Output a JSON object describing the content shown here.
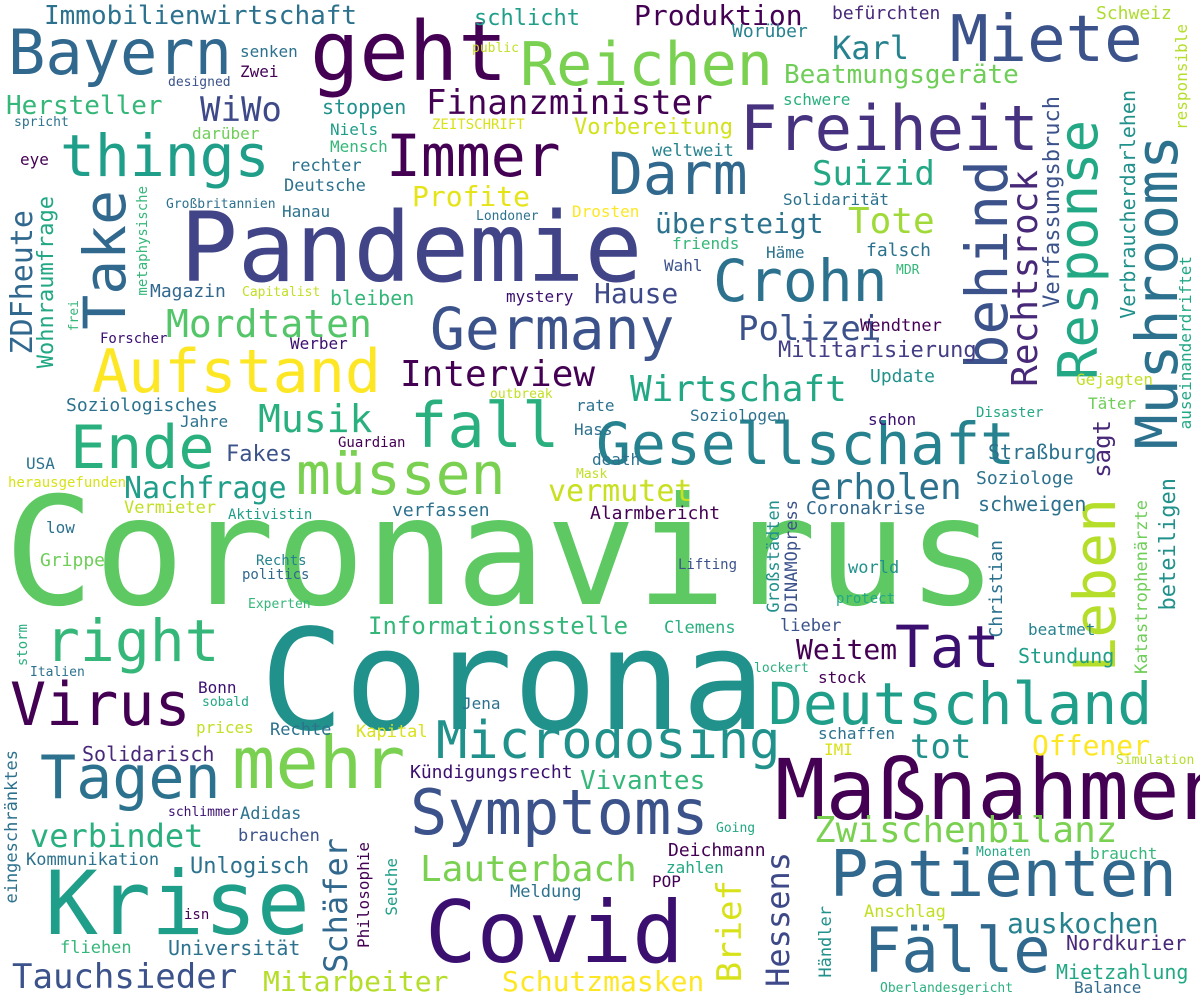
{
  "words": [
    {
      "text": "Coronavirus",
      "color": "#5ec962"
    },
    {
      "text": "Corona",
      "color": "#21918c"
    },
    {
      "text": "Pandemie",
      "color": "#414487"
    },
    {
      "text": "Maßnahmen",
      "color": "#440154"
    },
    {
      "text": "geht",
      "color": "#440154"
    },
    {
      "text": "Covid",
      "color": "#3b0f70"
    },
    {
      "text": "Krise",
      "color": "#1f9e89"
    },
    {
      "text": "mehr",
      "color": "#7ad151"
    },
    {
      "text": "Patienten",
      "color": "#31688e"
    },
    {
      "text": "Reichen",
      "color": "#7ad151"
    },
    {
      "text": "Miete",
      "color": "#3b528b"
    },
    {
      "text": "Bayern",
      "color": "#31688e"
    },
    {
      "text": "Gesellschaft",
      "color": "#26828e"
    },
    {
      "text": "Germany",
      "color": "#3b528b"
    },
    {
      "text": "Deutschland",
      "color": "#1f9e89"
    },
    {
      "text": "Symptoms",
      "color": "#3b528b"
    },
    {
      "text": "Freiheit",
      "color": "#46327e"
    },
    {
      "text": "Aufstand",
      "color": "#fde725"
    },
    {
      "text": "Take",
      "color": "#31688e"
    },
    {
      "text": "Mushrooms",
      "color": "#2c728e"
    },
    {
      "text": "Response",
      "color": "#22a884"
    },
    {
      "text": "behind",
      "color": "#3b528b"
    },
    {
      "text": "Leben",
      "color": "#b5de2b"
    },
    {
      "text": "things",
      "color": "#1f9e89"
    },
    {
      "text": "Immer",
      "color": "#440154"
    },
    {
      "text": "Darm",
      "color": "#31688e"
    },
    {
      "text": "Crohn",
      "color": "#2c728e"
    },
    {
      "text": "fall",
      "color": "#2ab07f"
    },
    {
      "text": "Ende",
      "color": "#2ab07f"
    },
    {
      "text": "müssen",
      "color": "#7ad151"
    },
    {
      "text": "right",
      "color": "#35b779"
    },
    {
      "text": "Virus",
      "color": "#440154"
    },
    {
      "text": "Tagen",
      "color": "#2c728e"
    },
    {
      "text": "Tat",
      "color": "#3b0f70"
    },
    {
      "text": "Microdosing",
      "color": "#21918c"
    },
    {
      "text": "Fälle",
      "color": "#31688e"
    },
    {
      "text": "Rechtsrock",
      "color": "#482878"
    },
    {
      "text": "Finanzminister",
      "color": "#440154"
    },
    {
      "text": "Interview",
      "color": "#440154"
    },
    {
      "text": "Wirtschaft",
      "color": "#22a884"
    },
    {
      "text": "Mordtaten",
      "color": "#54c568"
    },
    {
      "text": "Musik",
      "color": "#2ab07f"
    },
    {
      "text": "Immobilienwirtschaft",
      "color": "#2c728e"
    },
    {
      "text": "Produktion",
      "color": "#440154"
    },
    {
      "text": "Karl",
      "color": "#26828e"
    },
    {
      "text": "WiWo",
      "color": "#3e4989"
    },
    {
      "text": "Hersteller",
      "color": "#35b779"
    },
    {
      "text": "Beatmungsgeräte",
      "color": "#6ece58"
    },
    {
      "text": "Vorbereitung",
      "color": "#d2e21b"
    },
    {
      "text": "Suizid",
      "color": "#22a884"
    },
    {
      "text": "Tote",
      "color": "#a0da39"
    },
    {
      "text": "Profite",
      "color": "#e5e419"
    },
    {
      "text": "übersteigt",
      "color": "#2c728e"
    },
    {
      "text": "Polizei",
      "color": "#3b528b"
    },
    {
      "text": "Hause",
      "color": "#3e4989"
    },
    {
      "text": "vermutet",
      "color": "#c8e020"
    },
    {
      "text": "erholen",
      "color": "#2c728e"
    },
    {
      "text": "Nachfrage",
      "color": "#1f9e89"
    },
    {
      "text": "Zwischenbilanz",
      "color": "#7ad151"
    },
    {
      "text": "Lauterbach",
      "color": "#7ad151"
    },
    {
      "text": "Schäfer",
      "color": "#31688e"
    },
    {
      "text": "verbindet",
      "color": "#2ab07f"
    },
    {
      "text": "Tauchsieder",
      "color": "#3b528b"
    },
    {
      "text": "Mitarbeiter",
      "color": "#b5de2b"
    },
    {
      "text": "Schutzmasken",
      "color": "#fde725"
    },
    {
      "text": "Hessens",
      "color": "#3e4989"
    },
    {
      "text": "Brief",
      "color": "#d8e219"
    },
    {
      "text": "auskochen",
      "color": "#26828e"
    },
    {
      "text": "Offener",
      "color": "#fde725"
    },
    {
      "text": "tot",
      "color": "#21918c"
    },
    {
      "text": "Weitem",
      "color": "#440154"
    },
    {
      "text": "ZDFheute",
      "color": "#31688e"
    },
    {
      "text": "Wohnraumfrage",
      "color": "#22a884"
    },
    {
      "text": "Verfassungsbruch",
      "color": "#3b528b"
    },
    {
      "text": "Verbraucherdarlehen",
      "color": "#21918c"
    },
    {
      "text": "beteiligen",
      "color": "#21918c"
    },
    {
      "text": "sagt",
      "color": "#482878"
    },
    {
      "text": "Informationsstelle",
      "color": "#35b779"
    },
    {
      "text": "Vivantes",
      "color": "#35b779"
    },
    {
      "text": "Militarisierung",
      "color": "#433e85"
    },
    {
      "text": "Soziologisches",
      "color": "#2c728e"
    },
    {
      "text": "stoppen",
      "color": "#21918c"
    },
    {
      "text": "bleiben",
      "color": "#35b779"
    },
    {
      "text": "Magazin",
      "color": "#31688e"
    },
    {
      "text": "Fakes",
      "color": "#3b528b"
    },
    {
      "text": "Solidarisch",
      "color": "#482878"
    },
    {
      "text": "Kündigungsrecht",
      "color": "#3b0f70"
    },
    {
      "text": "Deichmann",
      "color": "#440154"
    },
    {
      "text": "Nordkurier",
      "color": "#482878"
    },
    {
      "text": "Mietzahlung",
      "color": "#22a884"
    },
    {
      "text": "Universität",
      "color": "#2c728e"
    },
    {
      "text": "Unlogisch",
      "color": "#2c728e"
    },
    {
      "text": "Kommunikation",
      "color": "#2c728e"
    },
    {
      "text": "Stundung",
      "color": "#1f9e89"
    },
    {
      "text": "Straßburg",
      "color": "#2c728e"
    },
    {
      "text": "schweigen",
      "color": "#2c728e"
    },
    {
      "text": "Coronakrise",
      "color": "#31688e"
    },
    {
      "text": "Alarmbericht",
      "color": "#440154"
    },
    {
      "text": "verfassen",
      "color": "#2c728e"
    },
    {
      "text": "Vermieter",
      "color": "#c2df23"
    },
    {
      "text": "schlicht",
      "color": "#1f9e89"
    },
    {
      "text": "Worüber",
      "color": "#26828e"
    },
    {
      "text": "befürchten",
      "color": "#482878"
    },
    {
      "text": "Schweiz",
      "color": "#addc30"
    },
    {
      "text": "responsible",
      "color": "#b5de2b"
    },
    {
      "text": "schwere",
      "color": "#2ab07f"
    },
    {
      "text": "weltweit",
      "color": "#26828e"
    },
    {
      "text": "Solidarität",
      "color": "#2c728e"
    },
    {
      "text": "Update",
      "color": "#21918c"
    },
    {
      "text": "Gejagten",
      "color": "#c2df23"
    },
    {
      "text": "Täter",
      "color": "#6ece58"
    },
    {
      "text": "Disaster",
      "color": "#22a884"
    },
    {
      "text": "schon",
      "color": "#3b0f70"
    },
    {
      "text": "Soziologen",
      "color": "#2c728e"
    },
    {
      "text": "Soziologe",
      "color": "#2c728e"
    },
    {
      "text": "rate",
      "color": "#2c728e"
    },
    {
      "text": "Hass",
      "color": "#2c728e"
    },
    {
      "text": "death",
      "color": "#2c728e"
    },
    {
      "text": "Mask",
      "color": "#c2df23"
    },
    {
      "text": "outbreak",
      "color": "#c2df23"
    },
    {
      "text": "Guardian",
      "color": "#440154"
    },
    {
      "text": "Jahre",
      "color": "#2c728e"
    },
    {
      "text": "USA",
      "color": "#2c728e"
    },
    {
      "text": "herausgefunden",
      "color": "#d8e219"
    },
    {
      "text": "Aktivistin",
      "color": "#1f9e89"
    },
    {
      "text": "low",
      "color": "#2c728e"
    },
    {
      "text": "Grippe",
      "color": "#6ece58"
    },
    {
      "text": "Rechts",
      "color": "#26828e"
    },
    {
      "text": "politics",
      "color": "#31688e"
    },
    {
      "text": "Lifting",
      "color": "#3b528b"
    },
    {
      "text": "world",
      "color": "#21918c"
    },
    {
      "text": "protect",
      "color": "#22a884"
    },
    {
      "text": "Christian",
      "color": "#2c728e"
    },
    {
      "text": "Katastrophenärzte",
      "color": "#6ece58"
    },
    {
      "text": "Großstädten",
      "color": "#21918c"
    },
    {
      "text": "DINAMOpress",
      "color": "#3b528b"
    },
    {
      "text": "beatmet",
      "color": "#26828e"
    },
    {
      "text": "lieber",
      "color": "#3b528b"
    },
    {
      "text": "Clemens",
      "color": "#2ab07f"
    },
    {
      "text": "stock",
      "color": "#440154"
    },
    {
      "text": "lockert",
      "color": "#2ab07f"
    },
    {
      "text": "schaffen",
      "color": "#2c728e"
    },
    {
      "text": "IMI",
      "color": "#d8e219"
    },
    {
      "text": "Simulation",
      "color": "#b5de2b"
    },
    {
      "text": "Experten",
      "color": "#35b779"
    },
    {
      "text": "storm",
      "color": "#2ab07f"
    },
    {
      "text": "Italien",
      "color": "#2c728e"
    },
    {
      "text": "Bonn",
      "color": "#3b0f70"
    },
    {
      "text": "sobald",
      "color": "#22a884"
    },
    {
      "text": "prices",
      "color": "#c2df23"
    },
    {
      "text": "Rechte",
      "color": "#2c728e"
    },
    {
      "text": "Kapital",
      "color": "#d8e219"
    },
    {
      "text": "Jena",
      "color": "#2c728e"
    },
    {
      "text": "eingeschränktes",
      "color": "#2c728e"
    },
    {
      "text": "schlimmer",
      "color": "#3b0f70"
    },
    {
      "text": "Adidas",
      "color": "#2c728e"
    },
    {
      "text": "brauchen",
      "color": "#3b528b"
    },
    {
      "text": "Going",
      "color": "#22a884"
    },
    {
      "text": "Philosophie",
      "color": "#440154"
    },
    {
      "text": "Seuche",
      "color": "#1f9e89"
    },
    {
      "text": "zahlen",
      "color": "#22a884"
    },
    {
      "text": "Meldung",
      "color": "#2c728e"
    },
    {
      "text": "POP",
      "color": "#440154"
    },
    {
      "text": "isn",
      "color": "#440154"
    },
    {
      "text": "fliehen",
      "color": "#35b779"
    },
    {
      "text": "Monaten",
      "color": "#22a884"
    },
    {
      "text": "braucht",
      "color": "#35b779"
    },
    {
      "text": "Anschlag",
      "color": "#c2df23"
    },
    {
      "text": "Händler",
      "color": "#21918c"
    },
    {
      "text": "Oberlandesgericht",
      "color": "#2ab07f"
    },
    {
      "text": "Balance",
      "color": "#31688e"
    },
    {
      "text": "Zwei",
      "color": "#440154"
    },
    {
      "text": "senken",
      "color": "#2c728e"
    },
    {
      "text": "public",
      "color": "#c2df23"
    },
    {
      "text": "designed",
      "color": "#3b528b"
    },
    {
      "text": "darüber",
      "color": "#6ece58"
    },
    {
      "text": "spricht",
      "color": "#2c728e"
    },
    {
      "text": "eye",
      "color": "#440154"
    },
    {
      "text": "Niels",
      "color": "#1f9e89"
    },
    {
      "text": "Mensch",
      "color": "#35b779"
    },
    {
      "text": "ZEITSCHRIFT",
      "color": "#d8e219"
    },
    {
      "text": "rechter",
      "color": "#2c728e"
    },
    {
      "text": "Deutsche",
      "color": "#2c728e"
    },
    {
      "text": "Großbritannien",
      "color": "#2c728e"
    },
    {
      "text": "Hanau",
      "color": "#2c728e"
    },
    {
      "text": "metaphysische",
      "color": "#35b779"
    },
    {
      "text": "Londoner",
      "color": "#2c728e"
    },
    {
      "text": "Drosten",
      "color": "#fde725"
    },
    {
      "text": "friends",
      "color": "#35b779"
    },
    {
      "text": "Häme",
      "color": "#2c728e"
    },
    {
      "text": "falsch",
      "color": "#2c728e"
    },
    {
      "text": "MDR",
      "color": "#35b779"
    },
    {
      "text": "Wahl",
      "color": "#3b528b"
    },
    {
      "text": "mystery",
      "color": "#3b0f70"
    },
    {
      "text": "Capitalist",
      "color": "#c2df23"
    },
    {
      "text": "frei",
      "color": "#35b779"
    },
    {
      "text": "Forscher",
      "color": "#3b0f70"
    },
    {
      "text": "Werber",
      "color": "#3b0f70"
    },
    {
      "text": "Wendtner",
      "color": "#440154"
    },
    {
      "text": "auseinanderdriftet",
      "color": "#22a884"
    }
  ]
}
